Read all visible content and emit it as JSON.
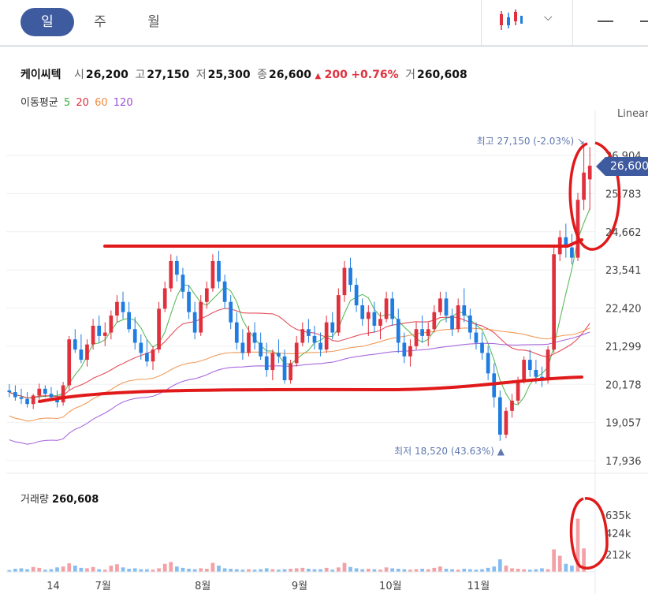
{
  "tabs": [
    {
      "label": "일",
      "active": true
    },
    {
      "label": "주",
      "active": false
    },
    {
      "label": "월",
      "active": false
    }
  ],
  "toolbar": {
    "chart_type_icon": "candlestick-icon",
    "dropdown_icon": "chevron-down-icon",
    "minimize_icon": "minus-icon"
  },
  "stock": {
    "name": "케이씨텍",
    "open_label": "시",
    "open": "26,200",
    "high_label": "고",
    "high": "27,150",
    "low_label": "저",
    "low": "25,300",
    "close_label": "종",
    "close": "26,600",
    "change_arrow": "▲",
    "change": "200",
    "change_pct": "+0.76%",
    "volume_label": "거",
    "volume": "260,608"
  },
  "ma": {
    "label": "이동평균",
    "periods": [
      {
        "label": "5",
        "color": "#3fae3f"
      },
      {
        "label": "20",
        "color": "#e0303d"
      },
      {
        "label": "60",
        "color": "#f08a3c"
      },
      {
        "label": "120",
        "color": "#9a4fd6"
      }
    ]
  },
  "scale_label": "Linear",
  "current_price_badge": "26,600",
  "colors": {
    "up": "#e0303d",
    "down": "#1f7ce0",
    "accent": "#3f5b9f",
    "annotation": "#e01a1a",
    "vol_up": "#f3a0a6",
    "vol_down": "#86bdf0"
  },
  "volume_panel": {
    "label": "거래량",
    "value": "260,608",
    "y_ticks": [
      "635k",
      "424k",
      "212k"
    ]
  },
  "chart_data": {
    "type": "candlestick",
    "price_axis": {
      "ticks": [
        "26,904",
        "25,783",
        "24,662",
        "23,541",
        "22,420",
        "21,299",
        "20,178",
        "19,057",
        "17,936"
      ],
      "ylim": [
        17936,
        26904
      ],
      "scale": "linear"
    },
    "x_axis": {
      "ticks": [
        "14",
        "7월",
        "8월",
        "9월",
        "10월",
        "11월"
      ]
    },
    "high_marker": {
      "label": "최고",
      "value": "27,150",
      "pct": "(-2.03%)"
    },
    "low_marker": {
      "label": "최저",
      "value": "18,520",
      "pct": "(43.63%)"
    },
    "candles": [
      [
        20000,
        20180,
        19800,
        19950
      ],
      [
        19950,
        20150,
        19700,
        19800
      ],
      [
        19800,
        20050,
        19600,
        19750
      ],
      [
        19750,
        19950,
        19500,
        19600
      ],
      [
        19600,
        19900,
        19450,
        19850
      ],
      [
        19850,
        20200,
        19700,
        20050
      ],
      [
        20050,
        20150,
        19800,
        19900
      ],
      [
        19900,
        20100,
        19700,
        19800
      ],
      [
        19800,
        20000,
        19500,
        19650
      ],
      [
        19650,
        20250,
        19550,
        20150
      ],
      [
        20150,
        21600,
        20000,
        21500
      ],
      [
        21500,
        21800,
        21100,
        21200
      ],
      [
        21200,
        21650,
        20800,
        20900
      ],
      [
        20900,
        21500,
        20700,
        21350
      ],
      [
        21350,
        22100,
        21200,
        21900
      ],
      [
        21900,
        22200,
        21400,
        21600
      ],
      [
        21600,
        22000,
        21300,
        21700
      ],
      [
        21700,
        22350,
        21500,
        22200
      ],
      [
        22200,
        22800,
        22000,
        22600
      ],
      [
        22600,
        22900,
        22100,
        22300
      ],
      [
        22300,
        22600,
        21700,
        21800
      ],
      [
        21800,
        22150,
        21200,
        21400
      ],
      [
        21400,
        21650,
        20900,
        21100
      ],
      [
        21100,
        21500,
        20700,
        20850
      ],
      [
        20850,
        21300,
        20600,
        21200
      ],
      [
        21200,
        22600,
        21100,
        22400
      ],
      [
        22400,
        23200,
        22300,
        23000
      ],
      [
        23000,
        24000,
        22900,
        23800
      ],
      [
        23800,
        23950,
        23200,
        23400
      ],
      [
        23400,
        23600,
        22700,
        22900
      ],
      [
        22900,
        23100,
        22100,
        22300
      ],
      [
        22300,
        22600,
        21500,
        21700
      ],
      [
        21700,
        22800,
        21600,
        22600
      ],
      [
        22600,
        23200,
        22400,
        23000
      ],
      [
        23000,
        24000,
        22900,
        23800
      ],
      [
        23800,
        24100,
        23000,
        23200
      ],
      [
        23200,
        23400,
        22400,
        22600
      ],
      [
        22600,
        22800,
        21800,
        22000
      ],
      [
        22000,
        22300,
        21200,
        21400
      ],
      [
        21400,
        21800,
        20900,
        21100
      ],
      [
        21100,
        21900,
        21000,
        21700
      ],
      [
        21700,
        22000,
        21200,
        21400
      ],
      [
        21400,
        21700,
        20900,
        21000
      ],
      [
        21000,
        21400,
        20400,
        20600
      ],
      [
        20600,
        21200,
        20300,
        21100
      ],
      [
        21100,
        21500,
        20800,
        21000
      ],
      [
        21000,
        21200,
        20200,
        20300
      ],
      [
        20300,
        20900,
        20200,
        20800
      ],
      [
        20800,
        21600,
        20700,
        21400
      ],
      [
        21400,
        22000,
        21300,
        21800
      ],
      [
        21800,
        22100,
        21400,
        21600
      ],
      [
        21600,
        21900,
        21200,
        21400
      ],
      [
        21400,
        21700,
        21000,
        21200
      ],
      [
        21200,
        22200,
        21100,
        22000
      ],
      [
        22000,
        22300,
        21500,
        21700
      ],
      [
        21700,
        23000,
        21600,
        22800
      ],
      [
        22800,
        23800,
        22600,
        23600
      ],
      [
        23600,
        23900,
        22900,
        23100
      ],
      [
        23100,
        23300,
        22300,
        22500
      ],
      [
        22500,
        22700,
        21900,
        22100
      ],
      [
        22100,
        22500,
        21600,
        22300
      ],
      [
        22300,
        22600,
        21700,
        21900
      ],
      [
        21900,
        22300,
        21500,
        22100
      ],
      [
        22100,
        22900,
        22000,
        22700
      ],
      [
        22700,
        22900,
        21900,
        22100
      ],
      [
        22100,
        22400,
        21100,
        21400
      ],
      [
        21400,
        21700,
        20800,
        21000
      ],
      [
        21000,
        21500,
        20700,
        21300
      ],
      [
        21300,
        22000,
        21200,
        21800
      ],
      [
        21800,
        22200,
        21400,
        21600
      ],
      [
        21600,
        22000,
        21300,
        21800
      ],
      [
        21800,
        22500,
        21700,
        22300
      ],
      [
        22300,
        22900,
        22200,
        22700
      ],
      [
        22700,
        22900,
        22000,
        22200
      ],
      [
        22200,
        22400,
        21600,
        21800
      ],
      [
        21800,
        22700,
        21700,
        22500
      ],
      [
        22500,
        23000,
        22000,
        22200
      ],
      [
        22200,
        22400,
        21500,
        21700
      ],
      [
        21700,
        22000,
        21200,
        21400
      ],
      [
        21400,
        21700,
        20900,
        21100
      ],
      [
        21100,
        21300,
        20300,
        20500
      ],
      [
        20500,
        20800,
        19500,
        19800
      ],
      [
        19800,
        20000,
        18520,
        18700
      ],
      [
        18700,
        19500,
        18600,
        19400
      ],
      [
        19400,
        19900,
        19200,
        19700
      ],
      [
        19700,
        20400,
        19600,
        20300
      ],
      [
        20300,
        21000,
        20200,
        20900
      ],
      [
        20900,
        21200,
        20400,
        20600
      ],
      [
        20600,
        20900,
        20200,
        20400
      ],
      [
        20400,
        20700,
        20100,
        20300
      ],
      [
        20300,
        21300,
        20200,
        21200
      ],
      [
        21200,
        24200,
        21100,
        24000
      ],
      [
        24000,
        24700,
        23800,
        24500
      ],
      [
        24500,
        24900,
        23900,
        24200
      ],
      [
        24200,
        24600,
        23700,
        23900
      ],
      [
        23900,
        25800,
        23800,
        25600
      ],
      [
        25600,
        27150,
        25300,
        26400
      ],
      [
        26200,
        27150,
        25300,
        26600
      ]
    ],
    "volume": [
      20,
      35,
      40,
      30,
      55,
      45,
      25,
      30,
      50,
      60,
      95,
      70,
      45,
      40,
      55,
      30,
      25,
      70,
      85,
      50,
      35,
      40,
      30,
      30,
      25,
      40,
      90,
      110,
      60,
      45,
      35,
      30,
      40,
      35,
      100,
      70,
      40,
      35,
      30,
      25,
      30,
      25,
      30,
      40,
      30,
      25,
      30,
      35,
      40,
      45,
      35,
      30,
      30,
      45,
      25,
      50,
      100,
      55,
      40,
      30,
      35,
      30,
      25,
      50,
      40,
      35,
      30,
      25,
      30,
      35,
      30,
      45,
      60,
      35,
      30,
      25,
      35,
      30,
      25,
      30,
      45,
      60,
      140,
      70,
      40,
      35,
      30,
      25,
      30,
      40,
      30,
      250,
      180,
      90,
      70,
      590,
      260
    ]
  }
}
